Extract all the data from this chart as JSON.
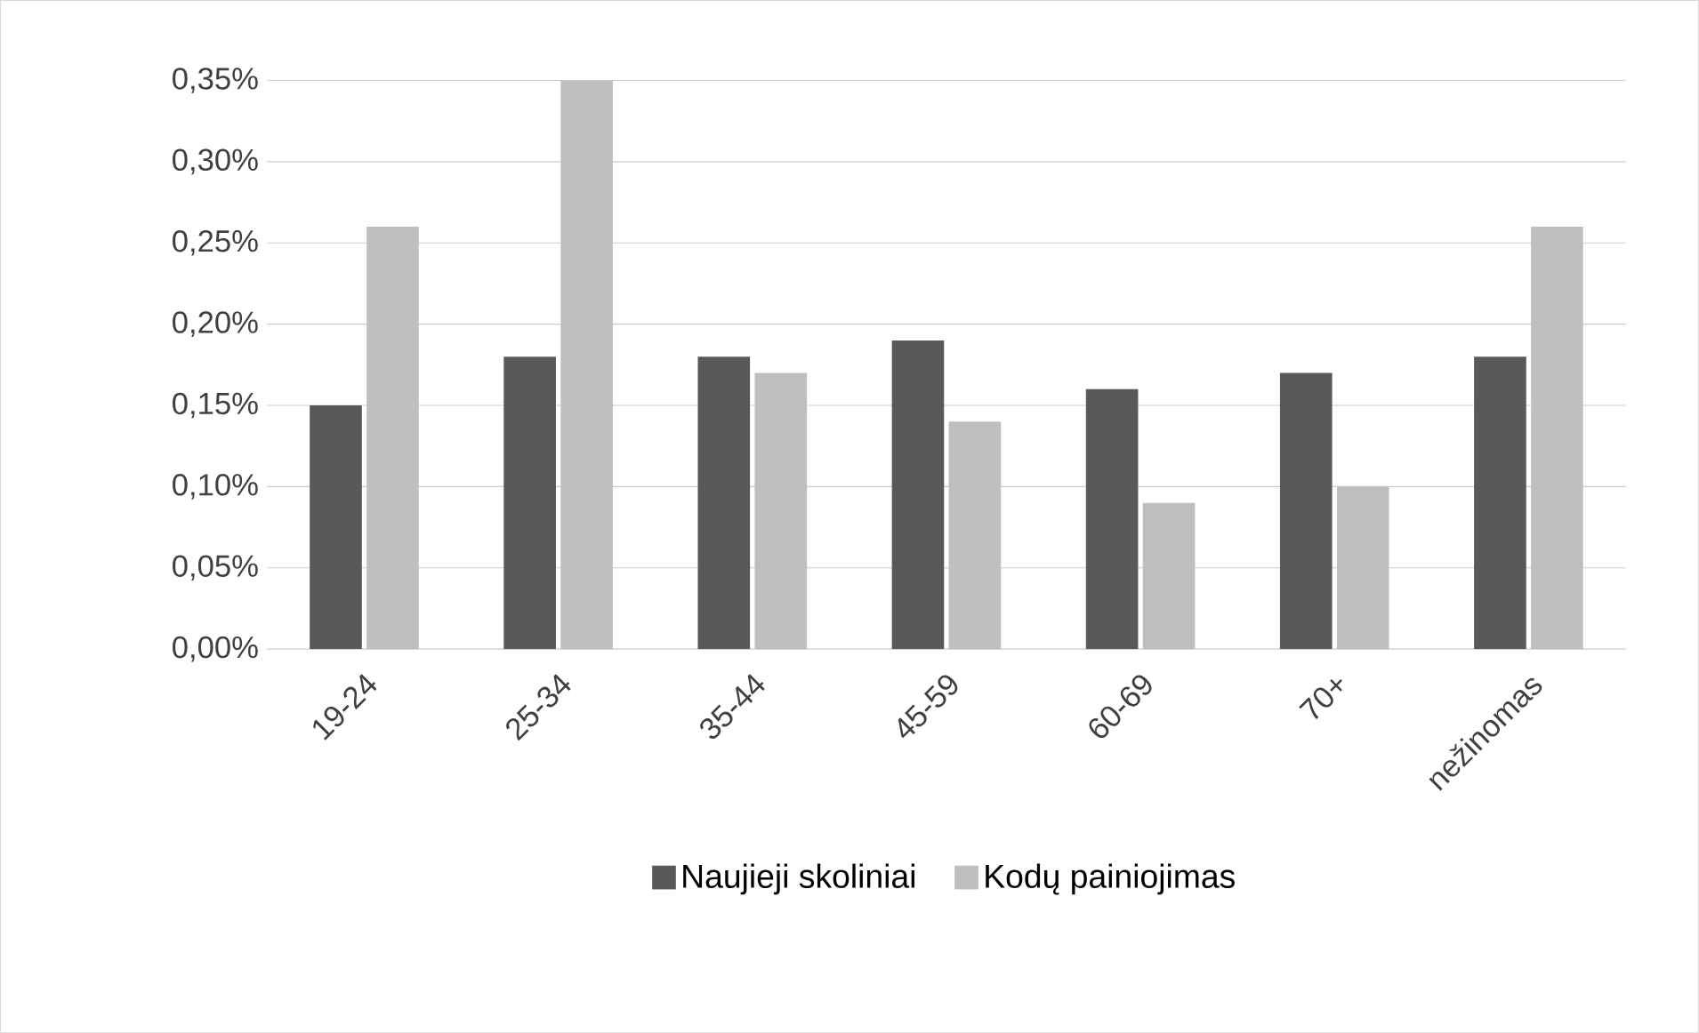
{
  "chart_data": {
    "type": "bar",
    "categories": [
      "19-24",
      "25-34",
      "35-44",
      "45-59",
      "60-69",
      "70+",
      "nežinomas"
    ],
    "series": [
      {
        "name": "Naujieji skoliniai",
        "color": "#595959",
        "values": [
          0.15,
          0.18,
          0.18,
          0.19,
          0.16,
          0.17,
          0.18
        ]
      },
      {
        "name": "Kodų painiojimas",
        "color": "#bfbfbf",
        "values": [
          0.26,
          0.35,
          0.17,
          0.14,
          0.09,
          0.1,
          0.26
        ]
      }
    ],
    "ylim": [
      0,
      0.35
    ],
    "yticks": [
      {
        "value": 0,
        "label": "0,00%"
      },
      {
        "value": 0.05,
        "label": "0,05%"
      },
      {
        "value": 0.1,
        "label": "0,10%"
      },
      {
        "value": 0.15,
        "label": "0,15%"
      },
      {
        "value": 0.2,
        "label": "0,20%"
      },
      {
        "value": 0.25,
        "label": "0,25%"
      },
      {
        "value": 0.3,
        "label": "0,30%"
      },
      {
        "value": 0.35,
        "label": "0,35%"
      }
    ],
    "grid": "y",
    "legend": "bottom"
  }
}
